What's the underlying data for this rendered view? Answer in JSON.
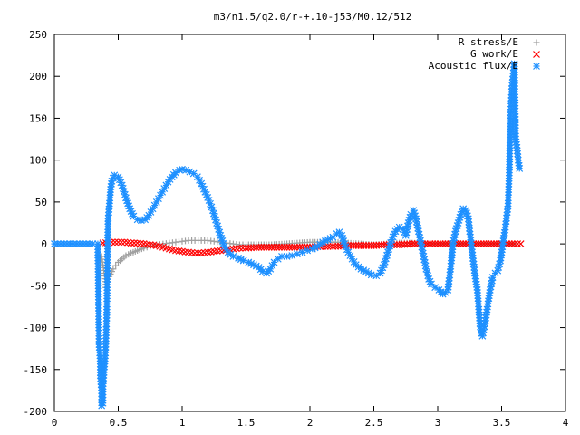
{
  "chart_data": {
    "type": "scatter",
    "title": "m3/n1.5/q2.0/r-+.10-j53/M0.12/512",
    "xlabel": "",
    "ylabel": "",
    "xlim": [
      0,
      4
    ],
    "ylim": [
      -200,
      250
    ],
    "x_ticks": [
      "0",
      "0.5",
      "1",
      "1.5",
      "2",
      "2.5",
      "3",
      "3.5",
      "4"
    ],
    "y_ticks": [
      "250",
      "200",
      "150",
      "100",
      "50",
      "0",
      "-50",
      "-100",
      "-150",
      "-200"
    ],
    "grid": false,
    "legend_position": "top-right",
    "series": [
      {
        "name": "R stress/E",
        "color": "#a0a0a0",
        "marker": "plus",
        "points": [
          [
            0.37,
            -15
          ],
          [
            0.38,
            -25
          ],
          [
            0.39,
            -35
          ],
          [
            0.4,
            -45
          ],
          [
            0.4,
            -52
          ],
          [
            0.41,
            -48
          ],
          [
            0.42,
            -42
          ],
          [
            0.44,
            -36
          ],
          [
            0.46,
            -30
          ],
          [
            0.48,
            -26
          ],
          [
            0.5,
            -22
          ],
          [
            0.53,
            -18
          ],
          [
            0.56,
            -14
          ],
          [
            0.6,
            -11
          ],
          [
            0.65,
            -8
          ],
          [
            0.7,
            -5
          ],
          [
            0.75,
            -3
          ],
          [
            0.8,
            -1
          ],
          [
            0.85,
            0
          ],
          [
            0.9,
            1
          ],
          [
            0.95,
            2
          ],
          [
            1.0,
            3
          ],
          [
            1.05,
            4
          ],
          [
            1.1,
            4
          ],
          [
            1.15,
            4
          ],
          [
            1.2,
            4
          ],
          [
            1.25,
            3
          ],
          [
            1.3,
            2
          ],
          [
            1.35,
            1
          ],
          [
            1.4,
            0
          ],
          [
            1.45,
            -1
          ],
          [
            1.5,
            -1
          ],
          [
            1.6,
            -1
          ],
          [
            1.7,
            -1
          ],
          [
            1.8,
            0
          ],
          [
            1.9,
            1
          ],
          [
            2.0,
            2
          ],
          [
            2.1,
            2
          ],
          [
            2.2,
            2
          ],
          [
            2.3,
            1
          ],
          [
            2.4,
            0
          ],
          [
            2.5,
            -1
          ],
          [
            2.6,
            0
          ],
          [
            2.7,
            1
          ],
          [
            2.8,
            1
          ],
          [
            2.9,
            0
          ],
          [
            3.0,
            0
          ],
          [
            3.1,
            0
          ],
          [
            3.2,
            0
          ],
          [
            3.3,
            0
          ],
          [
            3.4,
            0
          ],
          [
            3.5,
            0
          ],
          [
            3.6,
            0
          ]
        ]
      },
      {
        "name": "G work/E",
        "color": "#ff0000",
        "marker": "cross",
        "points": [
          [
            0.38,
            1
          ],
          [
            0.45,
            2
          ],
          [
            0.5,
            2
          ],
          [
            0.55,
            2
          ],
          [
            0.6,
            1
          ],
          [
            0.65,
            1
          ],
          [
            0.7,
            0
          ],
          [
            0.75,
            -1
          ],
          [
            0.8,
            -2
          ],
          [
            0.85,
            -4
          ],
          [
            0.9,
            -6
          ],
          [
            0.95,
            -8
          ],
          [
            1.0,
            -9
          ],
          [
            1.05,
            -10
          ],
          [
            1.1,
            -11
          ],
          [
            1.15,
            -11
          ],
          [
            1.2,
            -10
          ],
          [
            1.25,
            -9
          ],
          [
            1.3,
            -8
          ],
          [
            1.35,
            -7
          ],
          [
            1.4,
            -6
          ],
          [
            1.45,
            -5
          ],
          [
            1.5,
            -5
          ],
          [
            1.6,
            -4
          ],
          [
            1.7,
            -4
          ],
          [
            1.8,
            -4
          ],
          [
            1.9,
            -4
          ],
          [
            2.0,
            -4
          ],
          [
            2.1,
            -3
          ],
          [
            2.2,
            -3
          ],
          [
            2.3,
            -2
          ],
          [
            2.4,
            -2
          ],
          [
            2.5,
            -2
          ],
          [
            2.6,
            -1
          ],
          [
            2.7,
            -1
          ],
          [
            2.8,
            0
          ],
          [
            2.9,
            0
          ],
          [
            3.0,
            0
          ],
          [
            3.1,
            0
          ],
          [
            3.2,
            0
          ],
          [
            3.3,
            0
          ],
          [
            3.4,
            0
          ],
          [
            3.5,
            0
          ],
          [
            3.6,
            0
          ],
          [
            3.65,
            0
          ]
        ]
      },
      {
        "name": "Acoustic flux/E",
        "color": "#1e90ff",
        "marker": "star",
        "points": [
          [
            0.0,
            0
          ],
          [
            0.05,
            0
          ],
          [
            0.1,
            0
          ],
          [
            0.15,
            0
          ],
          [
            0.2,
            0
          ],
          [
            0.25,
            0
          ],
          [
            0.3,
            0
          ],
          [
            0.34,
            0
          ],
          [
            0.35,
            -120
          ],
          [
            0.36,
            -140
          ],
          [
            0.36,
            -157
          ],
          [
            0.37,
            -175
          ],
          [
            0.37,
            -193
          ],
          [
            0.38,
            -190
          ],
          [
            0.38,
            -170
          ],
          [
            0.39,
            -150
          ],
          [
            0.4,
            -130
          ],
          [
            0.41,
            -85
          ],
          [
            0.42,
            27
          ],
          [
            0.43,
            45
          ],
          [
            0.44,
            65
          ],
          [
            0.45,
            75
          ],
          [
            0.47,
            82
          ],
          [
            0.5,
            80
          ],
          [
            0.53,
            70
          ],
          [
            0.56,
            55
          ],
          [
            0.59,
            42
          ],
          [
            0.62,
            33
          ],
          [
            0.65,
            29
          ],
          [
            0.68,
            28
          ],
          [
            0.71,
            29
          ],
          [
            0.74,
            34
          ],
          [
            0.77,
            42
          ],
          [
            0.8,
            50
          ],
          [
            0.83,
            58
          ],
          [
            0.86,
            66
          ],
          [
            0.89,
            74
          ],
          [
            0.92,
            80
          ],
          [
            0.95,
            85
          ],
          [
            0.98,
            88
          ],
          [
            1.0,
            89
          ],
          [
            1.03,
            88
          ],
          [
            1.06,
            86
          ],
          [
            1.09,
            84
          ],
          [
            1.12,
            80
          ],
          [
            1.15,
            72
          ],
          [
            1.18,
            62
          ],
          [
            1.21,
            52
          ],
          [
            1.24,
            40
          ],
          [
            1.27,
            25
          ],
          [
            1.3,
            10
          ],
          [
            1.33,
            -3
          ],
          [
            1.36,
            -10
          ],
          [
            1.4,
            -15
          ],
          [
            1.44,
            -17
          ],
          [
            1.48,
            -20
          ],
          [
            1.52,
            -22
          ],
          [
            1.56,
            -25
          ],
          [
            1.6,
            -28
          ],
          [
            1.63,
            -33
          ],
          [
            1.66,
            -35
          ],
          [
            1.69,
            -30
          ],
          [
            1.72,
            -22
          ],
          [
            1.75,
            -18
          ],
          [
            1.78,
            -15
          ],
          [
            1.82,
            -15
          ],
          [
            1.86,
            -14
          ],
          [
            1.9,
            -12
          ],
          [
            1.94,
            -10
          ],
          [
            1.98,
            -8
          ],
          [
            2.02,
            -6
          ],
          [
            2.06,
            -3
          ],
          [
            2.1,
            2
          ],
          [
            2.14,
            5
          ],
          [
            2.18,
            8
          ],
          [
            2.21,
            12
          ],
          [
            2.23,
            14
          ],
          [
            2.25,
            10
          ],
          [
            2.27,
            0
          ],
          [
            2.3,
            -10
          ],
          [
            2.33,
            -18
          ],
          [
            2.36,
            -25
          ],
          [
            2.4,
            -30
          ],
          [
            2.44,
            -33
          ],
          [
            2.48,
            -37
          ],
          [
            2.52,
            -38
          ],
          [
            2.55,
            -35
          ],
          [
            2.58,
            -25
          ],
          [
            2.61,
            -10
          ],
          [
            2.64,
            5
          ],
          [
            2.67,
            15
          ],
          [
            2.7,
            20
          ],
          [
            2.73,
            18
          ],
          [
            2.75,
            10
          ],
          [
            2.77,
            25
          ],
          [
            2.79,
            35
          ],
          [
            2.81,
            40
          ],
          [
            2.83,
            30
          ],
          [
            2.85,
            15
          ],
          [
            2.87,
            0
          ],
          [
            2.89,
            -15
          ],
          [
            2.91,
            -30
          ],
          [
            2.93,
            -42
          ],
          [
            2.95,
            -48
          ],
          [
            2.98,
            -52
          ],
          [
            3.01,
            -55
          ],
          [
            3.04,
            -60
          ],
          [
            3.06,
            -58
          ],
          [
            3.08,
            -55
          ],
          [
            3.1,
            -30
          ],
          [
            3.12,
            0
          ],
          [
            3.14,
            15
          ],
          [
            3.16,
            25
          ],
          [
            3.18,
            35
          ],
          [
            3.2,
            42
          ],
          [
            3.22,
            40
          ],
          [
            3.24,
            30
          ],
          [
            3.25,
            15
          ],
          [
            3.27,
            -10
          ],
          [
            3.29,
            -35
          ],
          [
            3.31,
            -55
          ],
          [
            3.32,
            -75
          ],
          [
            3.33,
            -95
          ],
          [
            3.34,
            -107
          ],
          [
            3.35,
            -110
          ],
          [
            3.37,
            -95
          ],
          [
            3.39,
            -75
          ],
          [
            3.41,
            -55
          ],
          [
            3.43,
            -40
          ],
          [
            3.45,
            -35
          ],
          [
            3.47,
            -32
          ],
          [
            3.49,
            -20
          ],
          [
            3.51,
            0
          ],
          [
            3.53,
            20
          ],
          [
            3.55,
            45
          ],
          [
            3.56,
            85
          ],
          [
            3.57,
            150
          ],
          [
            3.58,
            185
          ],
          [
            3.59,
            200
          ],
          [
            3.6,
            215
          ],
          [
            3.61,
            125
          ],
          [
            3.62,
            115
          ],
          [
            3.63,
            100
          ],
          [
            3.64,
            90
          ]
        ]
      }
    ]
  },
  "legend": [
    {
      "label": "R stress/E",
      "color": "#a0a0a0",
      "marker": "plus"
    },
    {
      "label": "G work/E",
      "color": "#ff0000",
      "marker": "cross"
    },
    {
      "label": "Acoustic flux/E",
      "color": "#1e90ff",
      "marker": "star"
    }
  ]
}
